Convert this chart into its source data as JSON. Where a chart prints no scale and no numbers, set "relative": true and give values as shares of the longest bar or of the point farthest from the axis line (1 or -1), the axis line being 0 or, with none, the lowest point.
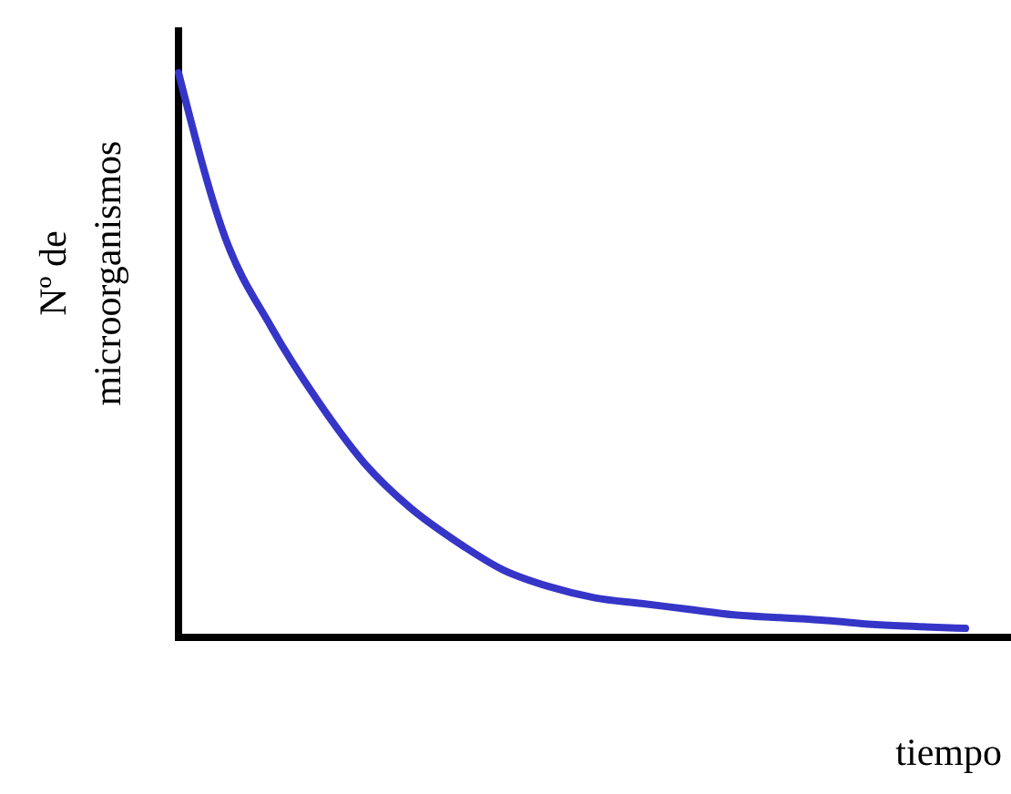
{
  "chart_data": {
    "type": "line",
    "relative": true,
    "xlabel": "tiempo",
    "ylabel": "Nº de\nmicroorganismos",
    "categories": [
      null,
      null,
      null,
      null,
      null,
      null,
      null,
      null,
      null,
      null,
      null,
      null,
      null,
      null,
      null,
      null,
      null,
      null
    ],
    "series": [
      {
        "color": "#3535c8",
        "values": [
          1,
          0.71,
          0.55,
          0.42,
          0.31,
          0.23,
          0.17,
          0.12,
          0.09,
          0.07,
          0.06,
          0.05,
          0.04,
          0.035,
          0.03,
          0.023,
          0.019,
          0.016
        ]
      }
    ]
  }
}
